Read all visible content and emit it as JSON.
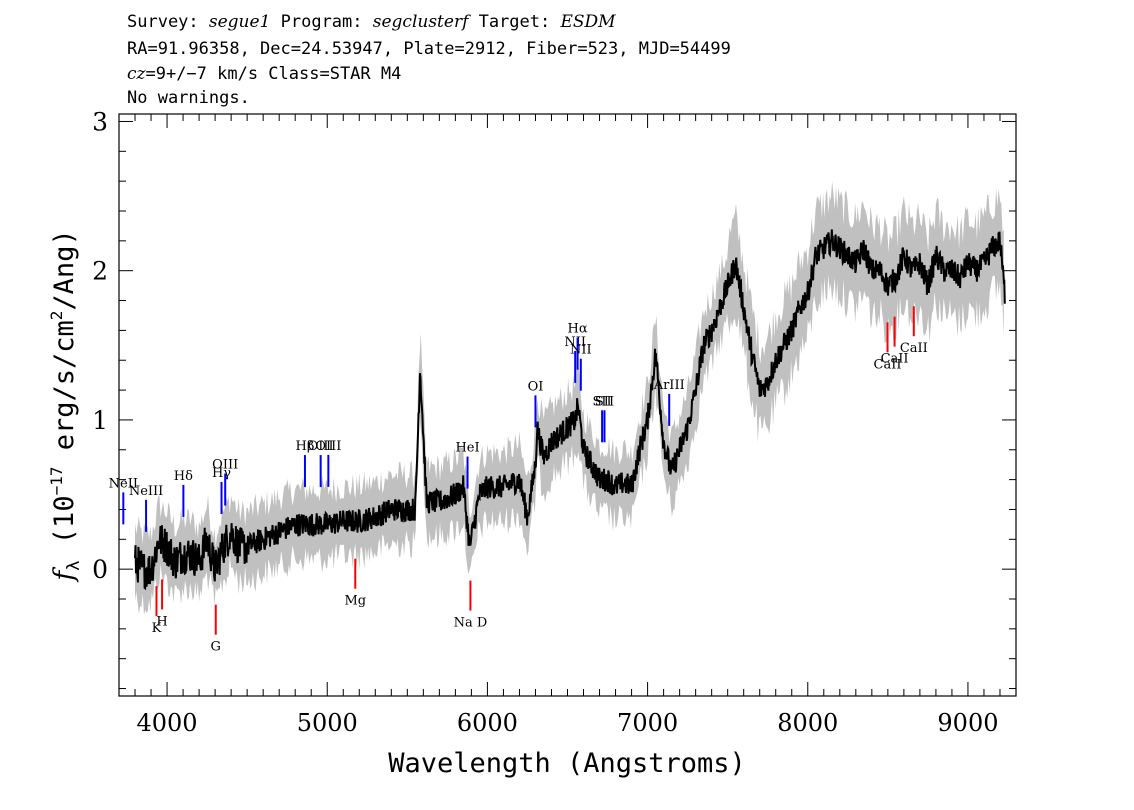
{
  "header": {
    "line1": {
      "survey_label": "Survey: ",
      "survey": "segue1",
      "program_label": " Program: ",
      "program": "segclusterf",
      "target_label": " Target: ",
      "target": "ESDM"
    },
    "line2": "RA=91.96358, Dec=24.53947, Plate=2912, Fiber=523, MJD=54499",
    "line3": {
      "cz_label": "cz",
      "cz_value": "=9+/−7 km/s Class=STAR M4"
    },
    "line4": "No warnings."
  },
  "chart_data": {
    "type": "line",
    "xlabel": "Wavelength (Angstroms)",
    "ylabel": {
      "f": "f",
      "sub": "λ",
      "mid": " (10",
      "exp": "−17",
      "units": " erg/s/cm",
      "sq": "2",
      "end": "/Ang)"
    },
    "xlim": [
      3700,
      9300
    ],
    "ylim": [
      -0.85,
      3.05
    ],
    "xticks": [
      4000,
      5000,
      6000,
      7000,
      8000,
      9000
    ],
    "yticks": [
      0,
      1,
      2,
      3
    ],
    "colors": {
      "flux": "#000000",
      "error_band": "#c0c0c0",
      "emission": "#0000ff",
      "absorption": "#ff0000"
    },
    "series": [
      {
        "style": "black-line",
        "x": [
          3800,
          3850,
          3900,
          3950,
          4000,
          4050,
          4100,
          4150,
          4200,
          4250,
          4300,
          4350,
          4400,
          4450,
          4500,
          4600,
          4700,
          4800,
          4900,
          5000,
          5100,
          5200,
          5300,
          5400,
          5500,
          5550,
          5580,
          5620,
          5700,
          5800,
          5850,
          5890,
          5950,
          6000,
          6100,
          6200,
          6250,
          6300,
          6310,
          6350,
          6400,
          6450,
          6500,
          6550,
          6565,
          6600,
          6650,
          6700,
          6750,
          6800,
          6850,
          6900,
          6950,
          7000,
          7050,
          7100,
          7150,
          7200,
          7250,
          7300,
          7350,
          7400,
          7450,
          7500,
          7550,
          7600,
          7650,
          7700,
          7750,
          7800,
          7850,
          7900,
          7950,
          8000,
          8050,
          8100,
          8150,
          8200,
          8250,
          8300,
          8350,
          8400,
          8450,
          8500,
          8550,
          8600,
          8650,
          8700,
          8750,
          8800,
          8850,
          8900,
          8950,
          9000,
          9050,
          9100,
          9150,
          9200,
          9230
        ],
        "y": [
          0.05,
          0.0,
          0.0,
          0.2,
          0.15,
          0.05,
          0.1,
          0.1,
          0.05,
          0.2,
          0.0,
          0.15,
          0.25,
          0.15,
          0.15,
          0.2,
          0.25,
          0.3,
          0.3,
          0.3,
          0.32,
          0.32,
          0.35,
          0.4,
          0.4,
          0.4,
          1.35,
          0.45,
          0.45,
          0.5,
          0.55,
          0.15,
          0.5,
          0.55,
          0.55,
          0.6,
          0.35,
          0.7,
          0.95,
          0.75,
          0.85,
          0.9,
          0.95,
          1.0,
          1.1,
          0.8,
          0.7,
          0.6,
          0.6,
          0.55,
          0.58,
          0.55,
          0.8,
          1.0,
          1.45,
          0.85,
          0.65,
          0.8,
          0.95,
          1.2,
          1.5,
          1.6,
          1.75,
          1.9,
          2.05,
          1.75,
          1.45,
          1.2,
          1.25,
          1.4,
          1.5,
          1.6,
          1.75,
          1.85,
          2.1,
          2.15,
          2.2,
          2.15,
          2.1,
          2.05,
          2.15,
          2.0,
          2.0,
          1.9,
          1.95,
          2.1,
          2.0,
          2.05,
          1.9,
          2.1,
          2.0,
          2.0,
          1.95,
          2.05,
          2.0,
          2.05,
          2.15,
          2.2,
          1.85
        ],
        "noise": 0.08
      },
      {
        "style": "grey-band",
        "band_halfwidth": 0.22
      }
    ],
    "emission_lines": [
      {
        "label": "NeII",
        "x": 3727
      },
      {
        "label": "NeIII",
        "x": 3869
      },
      {
        "label": "Hδ",
        "x": 4102
      },
      {
        "label": "Hγ",
        "x": 4340
      },
      {
        "label": "OIII",
        "x": 4363
      },
      {
        "label": "Hβ",
        "x": 4861
      },
      {
        "label": "OIII",
        "x": 4959
      },
      {
        "label": "OIII",
        "x": 5007
      },
      {
        "label": "HeI",
        "x": 5876
      },
      {
        "label": "OI",
        "x": 6300
      },
      {
        "label": "NII",
        "x": 6548
      },
      {
        "label": "Hα",
        "x": 6563
      },
      {
        "label": "NII",
        "x": 6583
      },
      {
        "label": "SII",
        "x": 6716
      },
      {
        "label": "SII",
        "x": 6731
      },
      {
        "label": "ArIII",
        "x": 7135
      }
    ],
    "absorption_lines": [
      {
        "label": "K",
        "x": 3934
      },
      {
        "label": "H",
        "x": 3969
      },
      {
        "label": "G",
        "x": 4304
      },
      {
        "label": "Mg",
        "x": 5175
      },
      {
        "label": "Na D",
        "x": 5894
      },
      {
        "label": "CaII",
        "x": 8498
      },
      {
        "label": "CaII",
        "x": 8542
      },
      {
        "label": "CaII",
        "x": 8662
      }
    ]
  }
}
